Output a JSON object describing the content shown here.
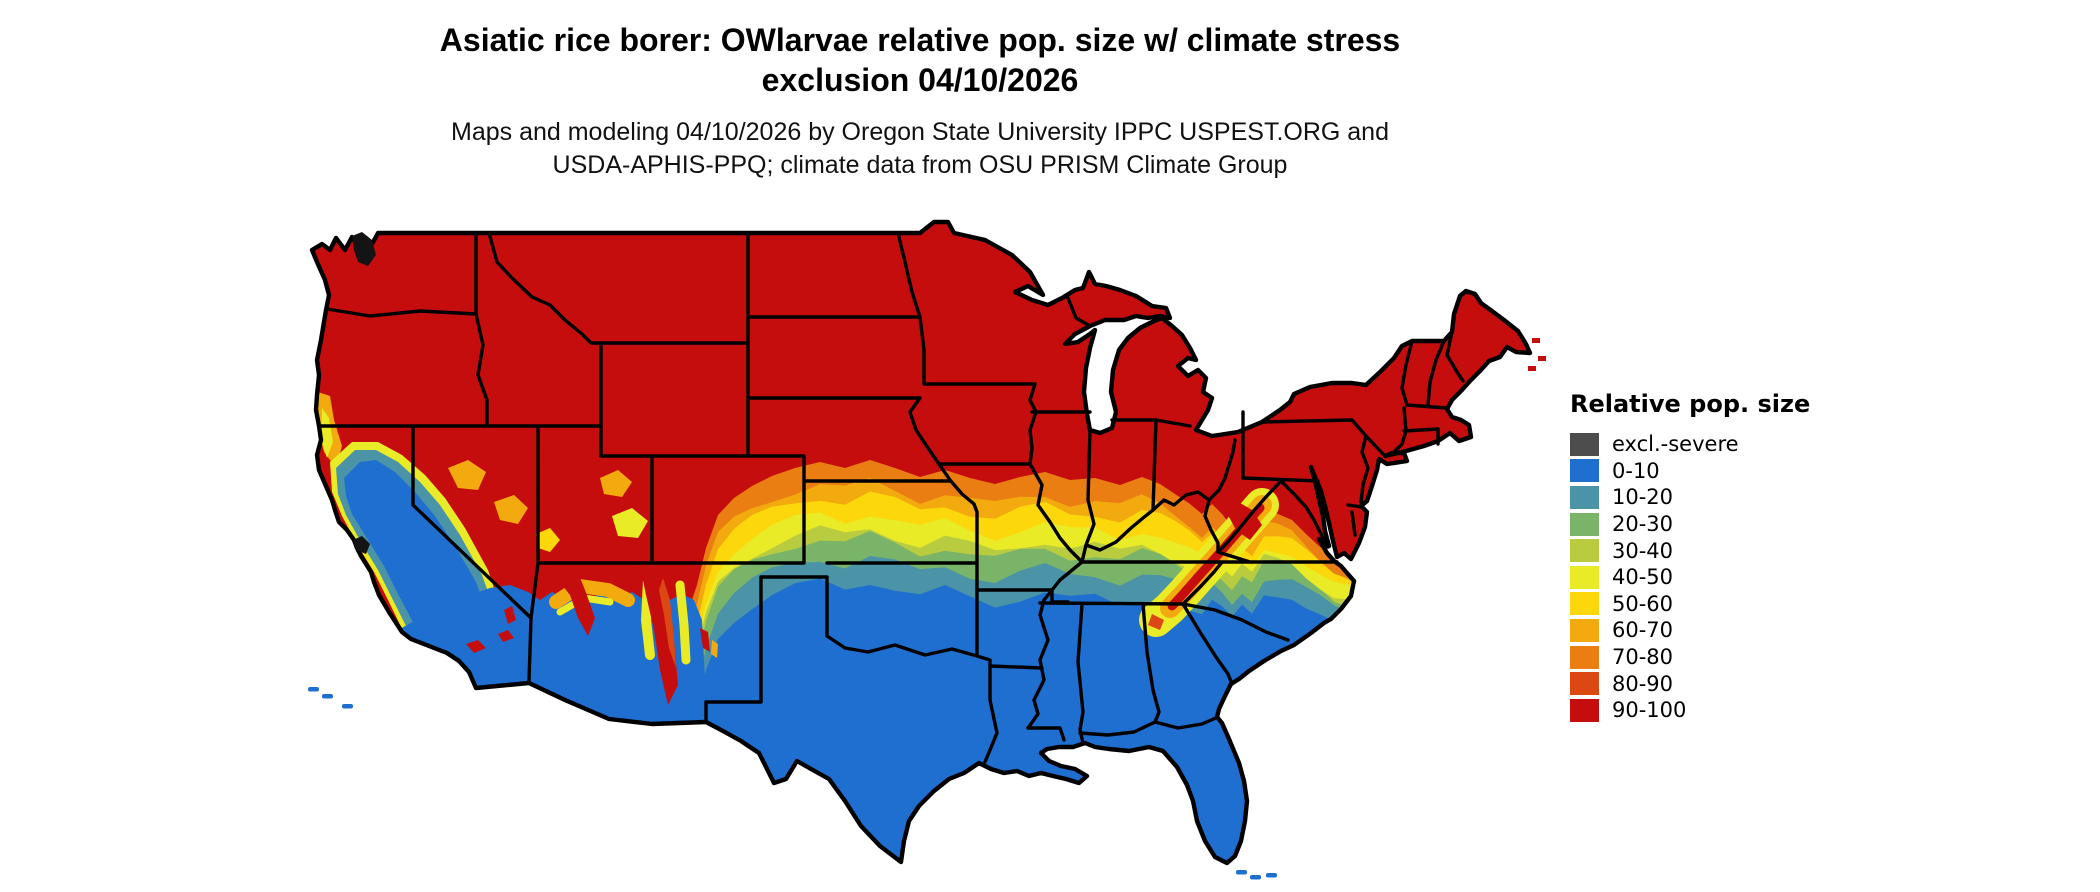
{
  "figure": {
    "title_line1": "Asiatic rice borer: OWlarvae relative pop. size w/ climate stress",
    "title_line2": "exclusion 04/10/2026",
    "subtitle_line1": "Maps and modeling 04/10/2026 by Oregon State University IPPC USPEST.ORG and",
    "subtitle_line2": "USDA-APHIS-PPQ; climate data from OSU PRISM Climate Group"
  },
  "legend": {
    "title": "Relative pop. size",
    "items": [
      {
        "label": "excl.-severe",
        "color": "#4D4D4D"
      },
      {
        "label": "0-10",
        "color": "#1F6FD0"
      },
      {
        "label": "10-20",
        "color": "#4B93A6"
      },
      {
        "label": "20-30",
        "color": "#7AB469"
      },
      {
        "label": "30-40",
        "color": "#B9CC40"
      },
      {
        "label": "40-50",
        "color": "#E9EB26"
      },
      {
        "label": "50-60",
        "color": "#FBD70B"
      },
      {
        "label": "60-70",
        "color": "#F2AA0E"
      },
      {
        "label": "70-80",
        "color": "#EA7E12"
      },
      {
        "label": "80-90",
        "color": "#DB4814"
      },
      {
        "label": "90-100",
        "color": "#C60D0D"
      }
    ]
  },
  "map": {
    "region": "Contiguous United States",
    "ocean_color": "#FFFFFF",
    "state_border_color": "#000000"
  },
  "chart_data": {
    "type": "choropleth_map",
    "title": "Asiatic rice borer: OWlarvae relative pop. size w/ climate stress exclusion 04/10/2026",
    "legend_title": "Relative pop. size",
    "classes": [
      "excl.-severe",
      "0-10",
      "10-20",
      "20-30",
      "30-40",
      "40-50",
      "50-60",
      "60-70",
      "70-80",
      "80-90",
      "90-100"
    ],
    "class_colors": [
      "#4D4D4D",
      "#1F6FD0",
      "#4B93A6",
      "#7AB469",
      "#B9CC40",
      "#E9EB26",
      "#FBD70B",
      "#F2AA0E",
      "#EA7E12",
      "#DB4814",
      "#C60D0D"
    ],
    "geographic_pattern": {
      "north": "90-100 (red) across the northern US, Northeast, Midwest and northern Rockies",
      "central_transition": "east-west bands 80-90 through 10-20 across Kansas, Missouri, Kentucky and Virginia",
      "south": "0-10 (blue) across Texas, the Gulf states, Florida, southern California and the desert Southwest",
      "west": "mountain-driven mosaic: blue California valley/coast, red Sierra Nevada, Great Basin and southern Rockies",
      "appalachians": "red/orange ridge streak extending southwest through West Virginia, Virginia, Tennessee, North Carolina, north Georgia"
    }
  }
}
